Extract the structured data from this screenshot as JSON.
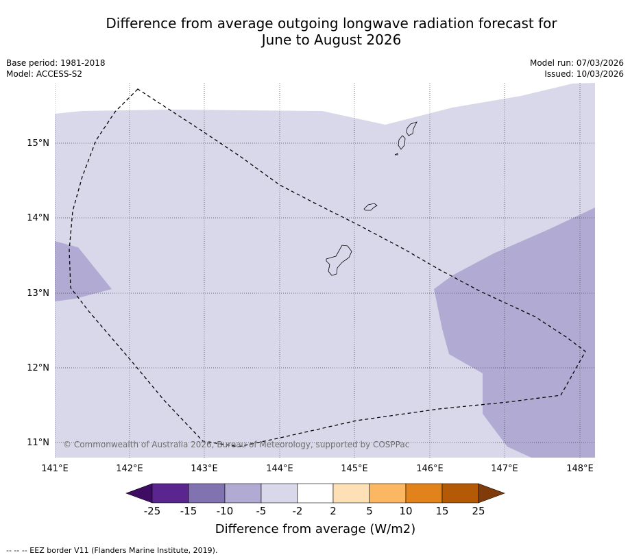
{
  "title": {
    "line1": "Difference from average outgoing longwave radiation forecast for",
    "line2": "June to August 2026"
  },
  "meta": {
    "base_period": "Base period: 1981-2018",
    "model": "Model: ACCESS-S2",
    "model_run": "Model run: 07/03/2026",
    "issued": "Issued: 10/03/2026"
  },
  "map": {
    "lon_labels": [
      "141°E",
      "142°E",
      "143°E",
      "144°E",
      "145°E",
      "146°E",
      "147°E",
      "148°E"
    ],
    "lat_labels": [
      "15°N",
      "14°N",
      "13°N",
      "12°N",
      "11°N"
    ],
    "lon_range": [
      141.0,
      148.2
    ],
    "lat_range": [
      10.8,
      15.8
    ],
    "copyright": "© Commonwealth of Australia 2026, Bureau of Meteorology, supported by COSPPac",
    "colors": {
      "light_band": "#d8d8ea",
      "mid_band": "#b1abd3",
      "grid": "#444444"
    }
  },
  "colorbar": {
    "tick_labels": [
      "-25",
      "-15",
      "-10",
      "-5",
      "-2",
      "2",
      "5",
      "10",
      "15",
      "25"
    ],
    "colors": [
      "#3f0c63",
      "#5b2590",
      "#8073b0",
      "#b1abd3",
      "#d8d8ea",
      "#ffffff",
      "#fde0b6",
      "#fcb763",
      "#e1821a",
      "#b45906",
      "#7f3c0a"
    ],
    "label": "Difference from average (W/m2)"
  },
  "footnote": "--  --  -- EEZ border V11 (Flanders Marine Institute, 2019)."
}
